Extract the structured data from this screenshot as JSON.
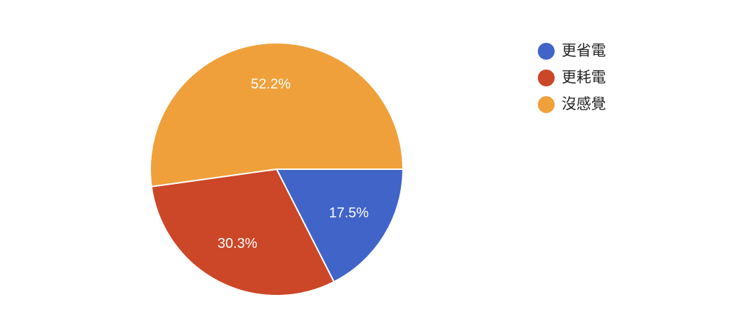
{
  "chart_data": {
    "type": "pie",
    "categories": [
      "更省電",
      "更耗電",
      "沒感覺"
    ],
    "values": [
      17.5,
      30.3,
      52.2
    ],
    "value_labels": [
      "17.5%",
      "30.3%",
      "52.2%"
    ],
    "colors": [
      "#4064c8",
      "#cc4628",
      "#f0a03a"
    ],
    "legend": "right"
  }
}
